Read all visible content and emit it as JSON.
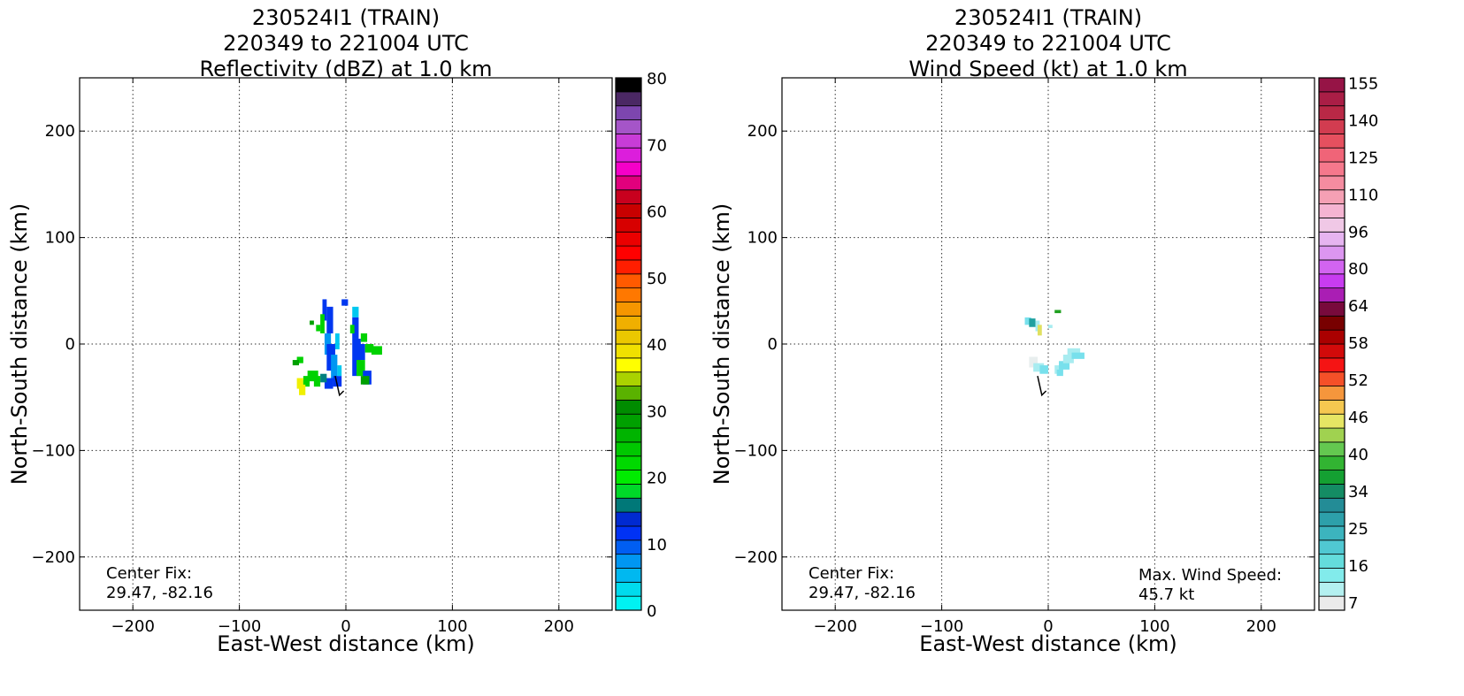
{
  "chart_data": [
    {
      "type": "heatmap",
      "title_lines": [
        "230524I1 (TRAIN)",
        "220349 to 221004 UTC",
        "Reflectivity (dBZ) at 1.0 km"
      ],
      "xlabel": "East-West distance (km)",
      "ylabel": "North-South distance (km)",
      "xlim": [
        -250,
        250
      ],
      "ylim": [
        -250,
        250
      ],
      "xticks": [
        "−200",
        "−100",
        "0",
        "100",
        "200"
      ],
      "yticks": [
        "200",
        "100",
        "0",
        "−100",
        "−200"
      ],
      "grid": true,
      "annotation_left": [
        "Center Fix:",
        "29.47, -82.16"
      ],
      "colorbar": {
        "min": 0,
        "max": 80,
        "tick_labels": [
          "0",
          "10",
          "20",
          "30",
          "40",
          "50",
          "60",
          "70",
          "80"
        ],
        "colors": [
          "#00f2f2",
          "#00dbed",
          "#00b8f0",
          "#0096f2",
          "#005ef2",
          "#0032f5",
          "#002ad1",
          "#007878",
          "#00d929",
          "#00eb00",
          "#00d900",
          "#00c800",
          "#00b400",
          "#00a000",
          "#008c00",
          "#5ab200",
          "#aad200",
          "#ffff00",
          "#f0e000",
          "#ebc800",
          "#f0af00",
          "#f59600",
          "#ff7800",
          "#ff5a00",
          "#ff1e00",
          "#ff0000",
          "#eb0000",
          "#d70000",
          "#c80000",
          "#c8001e",
          "#e1007d",
          "#f500c8",
          "#dc1edc",
          "#c83cd7",
          "#a555c8",
          "#7d46af",
          "#4b2864",
          "#000000"
        ]
      },
      "echo_colors": {
        "blue": "#0037f0",
        "lightblue": "#0096f2",
        "cyan": "#00c8f0",
        "green": "#00d200",
        "darkgreen": "#00a000",
        "yellow": "#f0f000",
        "teal": "#008080"
      }
    },
    {
      "type": "heatmap",
      "title_lines": [
        "230524I1 (TRAIN)",
        "220349 to 221004 UTC",
        "Wind Speed (kt) at 1.0 km"
      ],
      "xlabel": "East-West distance (km)",
      "ylabel": "North-South distance (km)",
      "xlim": [
        -250,
        250
      ],
      "ylim": [
        -250,
        250
      ],
      "xticks": [
        "−200",
        "−100",
        "0",
        "100",
        "200"
      ],
      "yticks": [
        "200",
        "100",
        "0",
        "−100",
        "−200"
      ],
      "grid": true,
      "annotation_left": [
        "Center Fix:",
        "29.47, -82.16"
      ],
      "annotation_right": [
        "Max. Wind Speed:",
        "45.7 kt"
      ],
      "colorbar": {
        "tick_labels": [
          "7",
          "16",
          "25",
          "34",
          "40",
          "46",
          "52",
          "58",
          "64",
          "80",
          "96",
          "110",
          "125",
          "140",
          "155"
        ],
        "colors": [
          "#ebebeb",
          "#b4f0f0",
          "#82ebeb",
          "#64dcdc",
          "#50c8d2",
          "#3cb4be",
          "#2da0aa",
          "#238c96",
          "#148c64",
          "#14a032",
          "#32b432",
          "#64c850",
          "#a0d250",
          "#e6e664",
          "#f5c850",
          "#f5963c",
          "#f55028",
          "#f51414",
          "#d20a0a",
          "#aa0000",
          "#780000",
          "#780a3c",
          "#aa1eb4",
          "#c83cf0",
          "#d264f0",
          "#dc96f0",
          "#e6b4f0",
          "#f0c8e6",
          "#f5b4d2",
          "#f5a0b4",
          "#f58ca0",
          "#f5788c",
          "#f06478",
          "#e6505f",
          "#d23c50",
          "#b92846",
          "#aa1e46",
          "#961446"
        ]
      },
      "echo_colors": {
        "cyan": "#a8ecf0",
        "cyan2": "#78e0ec",
        "white": "#e8eeee",
        "teal": "#20a0a0",
        "green": "#20a020",
        "yellow": "#e0e060"
      }
    }
  ]
}
